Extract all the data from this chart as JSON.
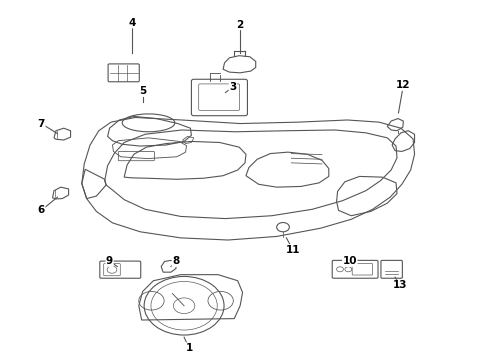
{
  "bg_color": "#ffffff",
  "line_color": "#555555",
  "text_color": "#000000",
  "lw": 0.8,
  "label_positions": {
    "1": [
      0.385,
      0.03,
      0.375,
      0.06
    ],
    "2": [
      0.49,
      0.935,
      0.49,
      0.855
    ],
    "3": [
      0.475,
      0.76,
      0.46,
      0.745
    ],
    "4": [
      0.268,
      0.94,
      0.268,
      0.855
    ],
    "5": [
      0.29,
      0.748,
      0.29,
      0.718
    ],
    "6": [
      0.082,
      0.415,
      0.115,
      0.452
    ],
    "7": [
      0.082,
      0.658,
      0.115,
      0.63
    ],
    "8": [
      0.358,
      0.272,
      0.348,
      0.258
    ],
    "9": [
      0.222,
      0.272,
      0.238,
      0.258
    ],
    "10": [
      0.715,
      0.272,
      0.718,
      0.258
    ],
    "11": [
      0.598,
      0.305,
      0.585,
      0.338
    ],
    "12": [
      0.825,
      0.765,
      0.815,
      0.688
    ],
    "13": [
      0.818,
      0.205,
      0.808,
      0.228
    ]
  }
}
